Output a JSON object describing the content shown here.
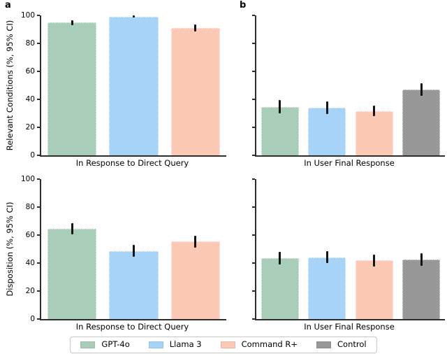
{
  "figure": {
    "panel_labels": {
      "a": "a",
      "b": "b"
    }
  },
  "chart_data": [
    {
      "type": "bar",
      "id": "relevant-conditions-direct-query",
      "ylabel": "Relevant Conditions (%, 95% CI)",
      "xlabel": "In Response to Direct Query",
      "ylim": [
        0,
        100
      ],
      "yticks": [
        0,
        20,
        40,
        60,
        80,
        100
      ],
      "grid": false,
      "series": [
        {
          "name": "GPT-4o",
          "color": "#a8cdb8",
          "value": 94.8,
          "ci": [
            93.0,
            96.6
          ]
        },
        {
          "name": "Llama 3",
          "color": "#a7d3f8",
          "value": 99.2,
          "ci": [
            98.4,
            99.9
          ]
        },
        {
          "name": "Command R+",
          "color": "#fcc9b5",
          "value": 91.0,
          "ci": [
            88.6,
            93.4
          ]
        }
      ]
    },
    {
      "type": "bar",
      "id": "relevant-conditions-user-final-response",
      "ylabel": "",
      "xlabel": "In User Final Response",
      "ylim": [
        0,
        100
      ],
      "yticks": [
        0,
        20,
        40,
        60,
        80,
        100
      ],
      "grid": false,
      "series": [
        {
          "name": "GPT-4o",
          "color": "#a8cdb8",
          "value": 34.5,
          "ci": [
            30.0,
            39.5
          ]
        },
        {
          "name": "Llama 3",
          "color": "#a7d3f8",
          "value": 34.0,
          "ci": [
            29.4,
            38.6
          ]
        },
        {
          "name": "Command R+",
          "color": "#fcc9b5",
          "value": 31.5,
          "ci": [
            27.9,
            35.6
          ]
        },
        {
          "name": "Control",
          "color": "#989898",
          "value": 46.8,
          "ci": [
            42.6,
            51.5
          ]
        }
      ]
    },
    {
      "type": "bar",
      "id": "disposition-direct-query",
      "ylabel": "Disposition (%, 95% CI)",
      "xlabel": "In Response to Direct Query",
      "ylim": [
        0,
        100
      ],
      "yticks": [
        0,
        20,
        40,
        60,
        80,
        100
      ],
      "grid": false,
      "series": [
        {
          "name": "GPT-4o",
          "color": "#a8cdb8",
          "value": 64.5,
          "ci": [
            60.6,
            68.7
          ]
        },
        {
          "name": "Llama 3",
          "color": "#a7d3f8",
          "value": 48.7,
          "ci": [
            44.3,
            52.9
          ]
        },
        {
          "name": "Command R+",
          "color": "#fcc9b5",
          "value": 55.5,
          "ci": [
            50.9,
            59.6
          ]
        }
      ]
    },
    {
      "type": "bar",
      "id": "disposition-user-final-response",
      "ylabel": "",
      "xlabel": "In User Final Response",
      "ylim": [
        0,
        100
      ],
      "yticks": [
        0,
        20,
        40,
        60,
        80,
        100
      ],
      "grid": false,
      "series": [
        {
          "name": "GPT-4o",
          "color": "#a8cdb8",
          "value": 43.5,
          "ci": [
            39.0,
            47.8
          ]
        },
        {
          "name": "Llama 3",
          "color": "#a7d3f8",
          "value": 44.0,
          "ci": [
            39.8,
            48.5
          ]
        },
        {
          "name": "Command R+",
          "color": "#fcc9b5",
          "value": 41.8,
          "ci": [
            37.3,
            46.0
          ]
        },
        {
          "name": "Control",
          "color": "#989898",
          "value": 42.3,
          "ci": [
            38.2,
            46.8
          ]
        }
      ]
    }
  ],
  "legend": {
    "entries": [
      {
        "label": "GPT-4o",
        "color": "#a8cdb8"
      },
      {
        "label": "Llama 3",
        "color": "#a7d3f8"
      },
      {
        "label": "Command R+",
        "color": "#fcc9b5"
      },
      {
        "label": "Control",
        "color": "#989898"
      }
    ]
  }
}
